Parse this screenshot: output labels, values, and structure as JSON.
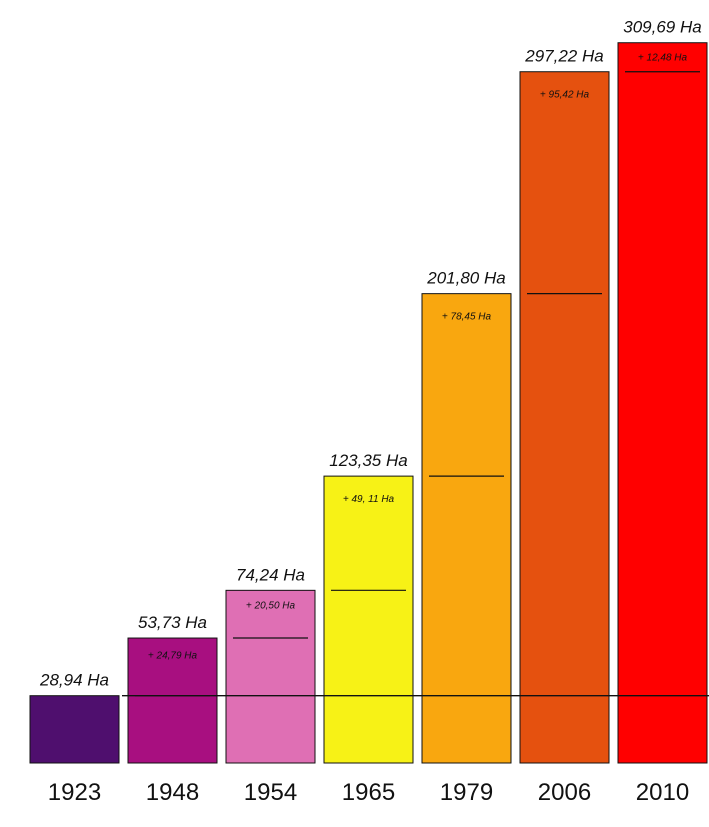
{
  "chart_data": {
    "type": "bar",
    "title": "",
    "xlabel": "",
    "ylabel": "",
    "categories": [
      "1923",
      "1948",
      "1954",
      "1965",
      "1979",
      "2006",
      "2010"
    ],
    "values": [
      28.94,
      53.73,
      74.24,
      123.35,
      201.8,
      297.22,
      309.69
    ],
    "value_labels": [
      "28,94 Ha",
      "53,73 Ha",
      "74,24 Ha",
      "123,35 Ha",
      "201,80 Ha",
      "297,22 Ha",
      "309,69 Ha"
    ],
    "increments": [
      null,
      24.79,
      20.5,
      49.11,
      78.45,
      95.42,
      12.48
    ],
    "increment_labels": [
      "",
      "+ 24,79 Ha",
      "+ 20,50 Ha",
      "+ 49, 11 Ha",
      "+ 78,45 Ha",
      "+ 95,42 Ha",
      "+ 12,48 Ha"
    ],
    "ylim": [
      0,
      310
    ],
    "grid": false,
    "legend": "none",
    "colors": [
      "#4f0f6e",
      "#a80f80",
      "#df6fb4",
      "#f7f216",
      "#f9a70f",
      "#e5510f",
      "#ff0000"
    ],
    "baseline_reference_value": 28.94
  }
}
